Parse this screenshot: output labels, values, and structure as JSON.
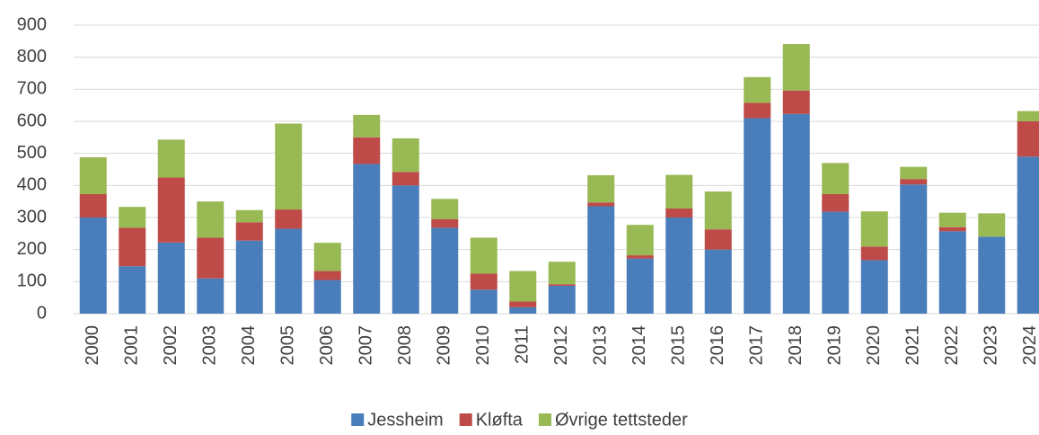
{
  "chart_data": {
    "type": "stacked_bar",
    "categories": [
      "2000",
      "2001",
      "2002",
      "2003",
      "2004",
      "2005",
      "2006",
      "2007",
      "2008",
      "2009",
      "2010",
      "2011",
      "2012",
      "2013",
      "2014",
      "2015",
      "2016",
      "2017",
      "2018",
      "2019",
      "2020",
      "2021",
      "2022",
      "2023",
      "2024"
    ],
    "series": [
      {
        "name": "Jessheim",
        "color": "#4a7ebb",
        "values": [
          300,
          148,
          222,
          110,
          228,
          265,
          105,
          467,
          400,
          268,
          75,
          20,
          87,
          335,
          172,
          300,
          200,
          610,
          623,
          318,
          167,
          403,
          257,
          240,
          490
        ]
      },
      {
        "name": "Kløfta",
        "color": "#be4b48",
        "values": [
          73,
          120,
          203,
          127,
          57,
          60,
          28,
          83,
          42,
          27,
          50,
          18,
          5,
          12,
          10,
          28,
          63,
          48,
          73,
          55,
          42,
          17,
          13,
          0,
          110
        ]
      },
      {
        "name": "Øvrige tettsteder",
        "color": "#98b954",
        "values": [
          115,
          65,
          118,
          113,
          38,
          268,
          88,
          70,
          105,
          63,
          112,
          95,
          70,
          85,
          95,
          105,
          118,
          80,
          145,
          97,
          110,
          38,
          45,
          73,
          32
        ]
      }
    ],
    "ylim": [
      0,
      900
    ],
    "yticks": [
      0,
      100,
      200,
      300,
      400,
      500,
      600,
      700,
      800,
      900
    ],
    "grid": true,
    "legend": "bottom"
  }
}
